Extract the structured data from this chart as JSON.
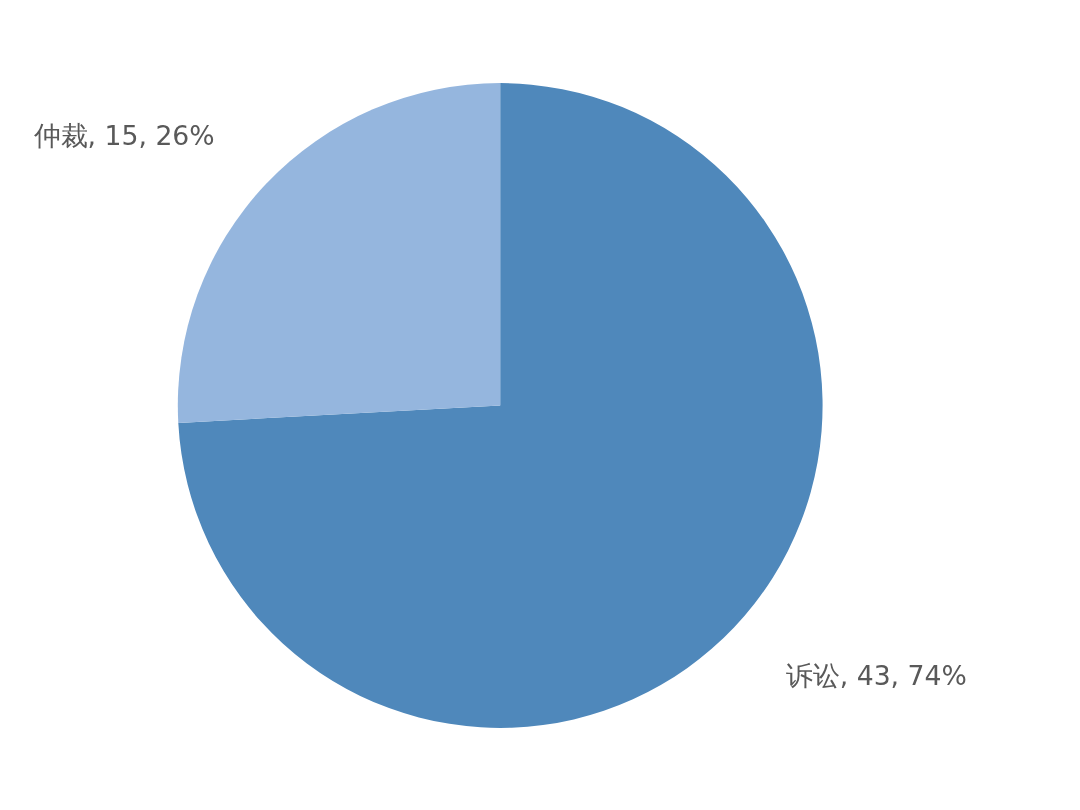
{
  "chart_data": {
    "type": "pie",
    "categories": [
      "诉讼",
      "仲裁"
    ],
    "values": [
      43,
      15
    ],
    "value_labels": [
      "43, 74%",
      "15, 26%"
    ],
    "colors": [
      "#4f88bb",
      "#95b6de"
    ]
  }
}
